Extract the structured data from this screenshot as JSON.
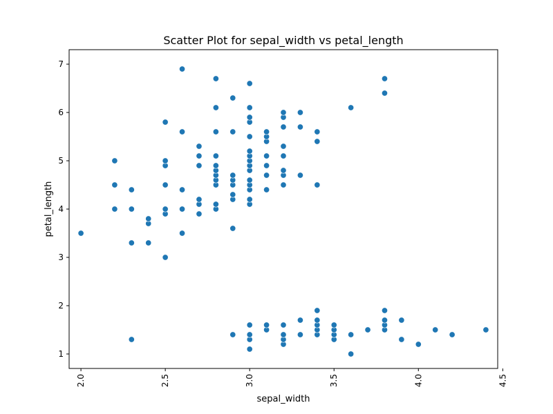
{
  "chart_data": {
    "type": "scatter",
    "title": "Scatter Plot for sepal_width vs petal_length",
    "xlabel": "sepal_width",
    "ylabel": "petal_length",
    "xlim": [
      1.93,
      4.47
    ],
    "ylim": [
      0.7,
      7.3
    ],
    "xticks": [
      2.0,
      2.5,
      3.0,
      3.5,
      4.0,
      4.5
    ],
    "xtick_labels": [
      "2.0",
      "2.5",
      "3.0",
      "3.5",
      "4.0",
      "4.5"
    ],
    "yticks": [
      1,
      2,
      3,
      4,
      5,
      6,
      7
    ],
    "ytick_labels": [
      "1",
      "2",
      "3",
      "4",
      "5",
      "6",
      "7"
    ],
    "xtick_rotation": "vertical",
    "grid": false,
    "color": "#1f77b4",
    "points": [
      [
        2.0,
        3.5
      ],
      [
        2.2,
        4.0
      ],
      [
        2.2,
        4.5
      ],
      [
        2.2,
        5.0
      ],
      [
        2.3,
        1.3
      ],
      [
        2.3,
        3.3
      ],
      [
        2.3,
        4.0
      ],
      [
        2.3,
        4.4
      ],
      [
        2.4,
        3.3
      ],
      [
        2.4,
        3.7
      ],
      [
        2.4,
        3.8
      ],
      [
        2.5,
        3.0
      ],
      [
        2.5,
        3.9
      ],
      [
        2.5,
        4.0
      ],
      [
        2.5,
        4.5
      ],
      [
        2.5,
        4.9
      ],
      [
        2.5,
        5.0
      ],
      [
        2.5,
        5.8
      ],
      [
        2.6,
        3.5
      ],
      [
        2.6,
        4.0
      ],
      [
        2.6,
        4.4
      ],
      [
        2.6,
        5.6
      ],
      [
        2.6,
        6.9
      ],
      [
        2.7,
        3.9
      ],
      [
        2.7,
        4.1
      ],
      [
        2.7,
        4.2
      ],
      [
        2.7,
        4.9
      ],
      [
        2.7,
        5.1
      ],
      [
        2.7,
        5.3
      ],
      [
        2.8,
        4.0
      ],
      [
        2.8,
        4.1
      ],
      [
        2.8,
        4.5
      ],
      [
        2.8,
        4.6
      ],
      [
        2.8,
        4.7
      ],
      [
        2.8,
        4.8
      ],
      [
        2.8,
        4.9
      ],
      [
        2.8,
        5.1
      ],
      [
        2.8,
        5.6
      ],
      [
        2.8,
        6.1
      ],
      [
        2.8,
        6.7
      ],
      [
        2.9,
        1.4
      ],
      [
        2.9,
        3.6
      ],
      [
        2.9,
        4.2
      ],
      [
        2.9,
        4.3
      ],
      [
        2.9,
        4.5
      ],
      [
        2.9,
        4.6
      ],
      [
        2.9,
        4.7
      ],
      [
        2.9,
        5.6
      ],
      [
        2.9,
        6.3
      ],
      [
        3.0,
        1.1
      ],
      [
        3.0,
        1.3
      ],
      [
        3.0,
        1.4
      ],
      [
        3.0,
        1.6
      ],
      [
        3.0,
        4.1
      ],
      [
        3.0,
        4.2
      ],
      [
        3.0,
        4.4
      ],
      [
        3.0,
        4.5
      ],
      [
        3.0,
        4.6
      ],
      [
        3.0,
        4.8
      ],
      [
        3.0,
        4.9
      ],
      [
        3.0,
        5.0
      ],
      [
        3.0,
        5.1
      ],
      [
        3.0,
        5.2
      ],
      [
        3.0,
        5.5
      ],
      [
        3.0,
        5.8
      ],
      [
        3.0,
        5.9
      ],
      [
        3.0,
        6.1
      ],
      [
        3.0,
        6.6
      ],
      [
        3.1,
        1.5
      ],
      [
        3.1,
        1.6
      ],
      [
        3.1,
        4.4
      ],
      [
        3.1,
        4.7
      ],
      [
        3.1,
        4.9
      ],
      [
        3.1,
        5.1
      ],
      [
        3.1,
        5.4
      ],
      [
        3.1,
        5.5
      ],
      [
        3.1,
        5.6
      ],
      [
        3.2,
        1.2
      ],
      [
        3.2,
        1.3
      ],
      [
        3.2,
        1.4
      ],
      [
        3.2,
        1.6
      ],
      [
        3.2,
        4.5
      ],
      [
        3.2,
        4.7
      ],
      [
        3.2,
        4.8
      ],
      [
        3.2,
        5.1
      ],
      [
        3.2,
        5.3
      ],
      [
        3.2,
        5.7
      ],
      [
        3.2,
        5.9
      ],
      [
        3.2,
        6.0
      ],
      [
        3.3,
        1.4
      ],
      [
        3.3,
        1.7
      ],
      [
        3.3,
        4.7
      ],
      [
        3.3,
        5.7
      ],
      [
        3.3,
        6.0
      ],
      [
        3.4,
        1.4
      ],
      [
        3.4,
        1.5
      ],
      [
        3.4,
        1.6
      ],
      [
        3.4,
        1.7
      ],
      [
        3.4,
        1.9
      ],
      [
        3.4,
        4.5
      ],
      [
        3.4,
        5.4
      ],
      [
        3.4,
        5.6
      ],
      [
        3.5,
        1.3
      ],
      [
        3.5,
        1.4
      ],
      [
        3.5,
        1.5
      ],
      [
        3.5,
        1.6
      ],
      [
        3.6,
        1.0
      ],
      [
        3.6,
        1.4
      ],
      [
        3.6,
        6.1
      ],
      [
        3.7,
        1.5
      ],
      [
        3.8,
        1.5
      ],
      [
        3.8,
        1.6
      ],
      [
        3.8,
        1.7
      ],
      [
        3.8,
        1.9
      ],
      [
        3.8,
        6.4
      ],
      [
        3.8,
        6.7
      ],
      [
        3.9,
        1.3
      ],
      [
        3.9,
        1.7
      ],
      [
        4.0,
        1.2
      ],
      [
        4.1,
        1.5
      ],
      [
        4.2,
        1.4
      ],
      [
        4.4,
        1.5
      ]
    ]
  }
}
